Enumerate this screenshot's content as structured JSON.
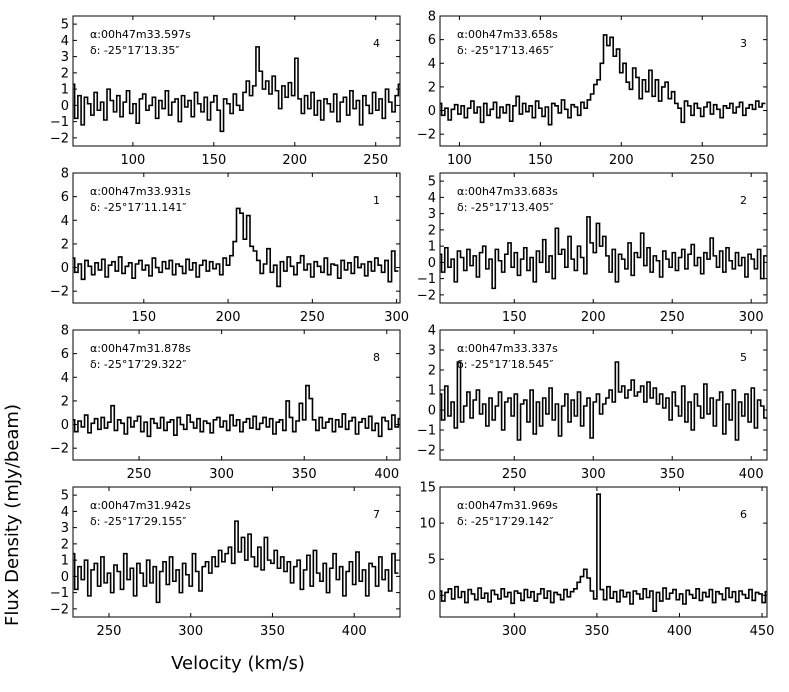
{
  "figure": {
    "ylabel": "Flux Density (mJy/beam)",
    "xlabel": "Velocity (km/s)"
  },
  "chart_data": [
    {
      "type": "line",
      "label": "4",
      "ra": "α:00h47m33.597s",
      "dec": "δ: -25°17′13.35″",
      "xlim": [
        63,
        265
      ],
      "ylim": [
        -2.5,
        5.5
      ],
      "xticks": [
        100,
        150,
        200,
        250
      ],
      "yticks": [
        -2,
        -1,
        0,
        1,
        2,
        3,
        4,
        5
      ],
      "x_start": 63,
      "x_step": 2,
      "values": [
        1.3,
        -0.8,
        0.6,
        -1.2,
        0.5,
        0.1,
        -0.6,
        0.8,
        -0.3,
        0.2,
        -0.9,
        1.0,
        0.3,
        -0.4,
        0.6,
        -0.7,
        0.2,
        0.9,
        -0.5,
        0.1,
        -1.1,
        0.4,
        0.7,
        -0.3,
        0.0,
        0.5,
        -0.8,
        0.3,
        -0.2,
        0.9,
        -0.6,
        0.2,
        0.4,
        -1.0,
        0.6,
        -0.1,
        0.3,
        -0.7,
        0.8,
        0.1,
        -0.4,
        0.5,
        -0.9,
        0.2,
        0.6,
        -0.3,
        -1.6,
        0.4,
        0.1,
        -0.5,
        0.7,
        0.0,
        -0.3,
        0.8,
        1.5,
        0.6,
        1.2,
        3.6,
        2.1,
        1.0,
        1.5,
        0.7,
        1.8,
        0.9,
        -0.2,
        1.2,
        0.5,
        1.4,
        0.6,
        2.9,
        0.4,
        -0.5,
        0.6,
        -0.2,
        0.8,
        -0.6,
        0.3,
        -0.9,
        0.4,
        0.1,
        -0.4,
        0.7,
        -1.0,
        0.2,
        0.5,
        -0.6,
        0.9,
        -0.2,
        0.3,
        -1.2,
        0.6,
        0.0,
        -0.5,
        0.8,
        -0.3,
        0.4,
        -0.8,
        1.0,
        0.2,
        -0.4,
        0.6,
        1.3
      ]
    },
    {
      "type": "line",
      "label": "3",
      "ra": "α:00h47m33.658s",
      "dec": "δ: -25°17′13.465″",
      "xlim": [
        88,
        290
      ],
      "ylim": [
        -3,
        8
      ],
      "xticks": [
        100,
        150,
        200,
        250
      ],
      "yticks": [
        -2,
        0,
        2,
        4,
        6,
        8
      ],
      "x_start": 88,
      "x_step": 2,
      "values": [
        0.6,
        -0.4,
        0.2,
        -0.8,
        0.1,
        0.5,
        -0.3,
        0.4,
        -0.6,
        0.2,
        0.8,
        -0.2,
        0.3,
        -1.0,
        0.6,
        -0.4,
        0.1,
        0.7,
        -0.6,
        0.3,
        -0.2,
        0.5,
        -0.9,
        0.4,
        1.2,
        -0.3,
        0.6,
        -0.1,
        0.4,
        -0.6,
        0.8,
        0.2,
        -0.5,
        0.3,
        -1.2,
        0.6,
        0.4,
        -0.2,
        0.9,
        0.1,
        -0.6,
        0.5,
        0.3,
        -0.4,
        0.7,
        0.2,
        0.9,
        1.4,
        2.2,
        2.6,
        4.0,
        6.4,
        5.5,
        6.2,
        4.6,
        5.2,
        3.2,
        4.0,
        2.4,
        1.8,
        3.6,
        2.8,
        1.0,
        2.6,
        1.6,
        3.4,
        1.2,
        2.6,
        0.8,
        2.0,
        2.4,
        1.0,
        1.6,
        0.6,
        0.2,
        -1.0,
        0.8,
        0.4,
        -0.4,
        0.6,
        0.2,
        -0.5,
        0.3,
        0.7,
        -0.3,
        0.5,
        0.1,
        -0.6,
        0.4,
        0.2,
        0.6,
        -0.2,
        0.3,
        0.7,
        -0.4,
        0.2,
        0.5,
        0.1,
        0.8,
        0.3,
        0.6
      ]
    },
    {
      "type": "line",
      "label": "1",
      "ra": "α:00h47m33.931s",
      "dec": "δ: -25°17′11.141″",
      "xlim": [
        108,
        302
      ],
      "ylim": [
        -3,
        8
      ],
      "xticks": [
        150,
        200,
        250,
        300
      ],
      "yticks": [
        -2,
        0,
        2,
        4,
        6,
        8
      ],
      "x_start": 108,
      "x_step": 2,
      "values": [
        0.8,
        -0.4,
        0.3,
        -1.0,
        0.6,
        0.1,
        -0.6,
        0.4,
        -0.2,
        0.7,
        -0.8,
        0.2,
        0.5,
        -0.3,
        0.9,
        -0.5,
        0.1,
        0.4,
        -0.9,
        0.3,
        0.6,
        -0.2,
        0.2,
        -0.7,
        0.8,
        0.0,
        -0.4,
        0.5,
        -0.1,
        0.6,
        -0.6,
        0.3,
        0.1,
        -0.5,
        0.7,
        -0.2,
        0.4,
        -0.8,
        0.2,
        0.6,
        -0.3,
        0.5,
        -0.1,
        0.3,
        -0.6,
        0.8,
        0.2,
        1.0,
        2.2,
        5.0,
        4.6,
        2.4,
        4.4,
        1.8,
        1.4,
        0.6,
        -0.5,
        0.3,
        1.6,
        -0.4,
        0.2,
        -1.6,
        0.5,
        -0.3,
        0.9,
        0.1,
        -0.6,
        0.4,
        1.0,
        -0.2,
        0.3,
        -0.8,
        0.5,
        0.1,
        -0.4,
        0.8,
        -0.6,
        0.3,
        0.2,
        -0.9,
        0.6,
        -0.2,
        0.4,
        -0.5,
        0.9,
        0.0,
        0.3,
        -0.7,
        0.5,
        -0.3,
        0.8,
        0.2,
        -0.4,
        0.6,
        -1.2,
        1.4,
        -0.3
      ]
    },
    {
      "type": "line",
      "label": "2",
      "ra": "α:00h47m33.683s",
      "dec": "δ: -25°17′13.405″",
      "xlim": [
        103,
        310
      ],
      "ylim": [
        -2.5,
        5.5
      ],
      "xticks": [
        150,
        200,
        250,
        300
      ],
      "yticks": [
        -2,
        -1,
        0,
        1,
        2,
        3,
        4,
        5
      ],
      "x_start": 103,
      "x_step": 2,
      "values": [
        0.5,
        -0.6,
        0.9,
        -0.3,
        0.2,
        -1.2,
        0.7,
        0.3,
        -0.5,
        0.8,
        -0.2,
        0.4,
        -0.9,
        0.6,
        1.0,
        -0.4,
        0.2,
        -1.6,
        0.8,
        0.1,
        -0.6,
        0.5,
        1.2,
        -0.3,
        0.6,
        -0.8,
        0.2,
        0.9,
        -0.5,
        0.3,
        -1.2,
        0.7,
        0.0,
        1.4,
        -0.6,
        0.4,
        -1.0,
        2.1,
        0.5,
        0.8,
        -0.3,
        1.6,
        0.2,
        -0.5,
        1.0,
        0.3,
        -0.7,
        2.8,
        1.2,
        0.6,
        2.4,
        1.0,
        1.6,
        0.4,
        -0.6,
        0.8,
        -1.2,
        0.5,
        0.2,
        -0.4,
        1.2,
        -0.8,
        0.6,
        0.3,
        1.8,
        -0.2,
        0.9,
        -0.6,
        0.4,
        0.1,
        -0.9,
        0.7,
        0.2,
        -0.3,
        0.6,
        -0.5,
        0.3,
        0.8,
        -0.4,
        0.5,
        1.1,
        -0.2,
        0.3,
        -0.7,
        0.6,
        0.2,
        1.5,
        0.4,
        -0.3,
        0.7,
        -0.6,
        0.9,
        0.1,
        -0.4,
        0.6,
        -0.2,
        0.3,
        -0.9,
        0.5,
        0.2,
        -0.4,
        0.8,
        -1.0,
        0.4
      ]
    },
    {
      "type": "line",
      "label": "8",
      "ra": "α:00h47m31.878s",
      "dec": "δ: -25°17′29.322″",
      "xlim": [
        210,
        408
      ],
      "ylim": [
        -3,
        8
      ],
      "xticks": [
        250,
        300,
        350,
        400
      ],
      "yticks": [
        -2,
        0,
        2,
        4,
        6,
        8
      ],
      "x_start": 210,
      "x_step": 2,
      "values": [
        0.4,
        -0.6,
        0.3,
        -0.2,
        0.8,
        -0.7,
        0.1,
        0.5,
        -0.4,
        0.6,
        -0.3,
        0.2,
        1.6,
        -0.5,
        0.4,
        0.1,
        -0.8,
        0.6,
        -0.2,
        0.3,
        0.7,
        -0.6,
        0.2,
        -1.0,
        0.5,
        0.1,
        -0.3,
        0.6,
        -0.5,
        0.2,
        0.4,
        -0.9,
        0.6,
        0.0,
        -0.4,
        0.8,
        0.2,
        -0.3,
        0.5,
        -0.6,
        0.3,
        0.1,
        -0.7,
        0.4,
        0.6,
        -0.2,
        0.3,
        -0.5,
        0.8,
        -0.1,
        0.4,
        -0.6,
        0.2,
        0.5,
        -0.3,
        0.7,
        -0.4,
        0.1,
        0.6,
        -0.2,
        0.5,
        -0.8,
        0.2,
        0.4,
        -0.5,
        2.0,
        0.6,
        -0.6,
        0.3,
        1.8,
        0.4,
        3.3,
        2.2,
        0.4,
        -0.5,
        0.6,
        -0.3,
        0.2,
        0.5,
        -0.6,
        0.4,
        -0.2,
        0.9,
        -0.4,
        0.3,
        0.6,
        -0.8,
        0.2,
        0.5,
        -0.3,
        0.7,
        -0.5,
        0.1,
        -1.0,
        0.6,
        0.3,
        -0.4,
        0.8,
        -0.2,
        0.5
      ]
    },
    {
      "type": "line",
      "label": "5",
      "ra": "α:00h47m33.337s",
      "dec": "δ: -25°17′18.545″",
      "xlim": [
        203,
        410
      ],
      "ylim": [
        -2.5,
        4
      ],
      "xticks": [
        250,
        300,
        350,
        400
      ],
      "yticks": [
        -2,
        -1,
        0,
        1,
        2,
        3,
        4
      ],
      "x_start": 203,
      "x_step": 2,
      "values": [
        0.8,
        -0.5,
        1.2,
        -0.3,
        0.4,
        -0.9,
        2.4,
        -0.6,
        0.2,
        0.9,
        -0.4,
        0.5,
        1.0,
        -0.2,
        0.3,
        -0.8,
        0.6,
        -0.5,
        0.2,
        0.9,
        -1.0,
        0.4,
        0.6,
        -0.3,
        0.8,
        -1.5,
        0.3,
        0.5,
        -0.6,
        1.0,
        -1.2,
        0.4,
        -0.8,
        0.6,
        -0.2,
        1.1,
        -0.5,
        0.3,
        -1.3,
        0.2,
        0.8,
        -0.6,
        0.5,
        -0.3,
        0.9,
        -0.8,
        0.2,
        0.6,
        -1.4,
        0.4,
        0.8,
        -0.2,
        0.3,
        0.6,
        1.0,
        0.4,
        2.4,
        0.9,
        1.2,
        0.6,
        1.0,
        1.5,
        0.7,
        0.9,
        1.2,
        0.4,
        1.4,
        0.6,
        1.1,
        0.3,
        0.8,
        0.1,
        0.6,
        -0.5,
        0.9,
        0.2,
        -0.3,
        1.2,
        -0.6,
        0.4,
        -1.0,
        0.8,
        0.2,
        -0.4,
        1.3,
        -0.2,
        0.6,
        -0.8,
        0.5,
        0.9,
        -1.2,
        0.3,
        -0.5,
        1.0,
        -1.5,
        0.4,
        -0.3,
        0.8,
        -0.6,
        1.1,
        -0.9,
        0.5,
        0.2,
        -0.4
      ]
    },
    {
      "type": "line",
      "label": "7",
      "ra": "α:00h47m31.942s",
      "dec": "δ: -25°17′29.155″",
      "xlim": [
        228,
        428
      ],
      "ylim": [
        -2.5,
        5.5
      ],
      "xticks": [
        250,
        300,
        350,
        400
      ],
      "yticks": [
        -2,
        -1,
        0,
        1,
        2,
        3,
        4,
        5
      ],
      "x_start": 228,
      "x_step": 2,
      "values": [
        1.4,
        -0.8,
        0.6,
        -0.2,
        1.0,
        -1.2,
        0.4,
        0.8,
        -0.6,
        1.2,
        -0.4,
        0.2,
        -1.0,
        0.7,
        0.3,
        -0.8,
        1.4,
        -0.2,
        0.5,
        -1.2,
        0.8,
        0.2,
        -0.6,
        1.0,
        -0.4,
        0.6,
        -1.6,
        0.3,
        0.9,
        -0.5,
        1.2,
        -0.3,
        0.4,
        -1.0,
        0.8,
        0.1,
        -0.6,
        1.4,
        0.3,
        -0.9,
        0.6,
        0.9,
        0.2,
        1.2,
        0.6,
        1.6,
        0.9,
        1.4,
        1.8,
        0.8,
        3.4,
        1.5,
        2.4,
        1.0,
        2.6,
        1.2,
        0.6,
        1.8,
        0.4,
        2.4,
        1.0,
        0.8,
        1.6,
        0.5,
        1.2,
        0.3,
        0.9,
        -0.4,
        0.6,
        1.0,
        -0.8,
        0.4,
        1.3,
        -0.6,
        1.6,
        0.2,
        -0.3,
        0.8,
        -1.0,
        0.5,
        1.4,
        -0.2,
        0.6,
        -1.2,
        0.3,
        0.9,
        -0.5,
        1.5,
        -0.3,
        0.4,
        -1.2,
        0.8,
        0.6,
        -0.6,
        1.2,
        -0.2,
        0.4,
        -0.9,
        1.4,
        0.2
      ]
    },
    {
      "type": "line",
      "label": "6",
      "ra": "α:00h47m31.969s",
      "dec": "δ: -25°17′29.142″",
      "xlim": [
        255,
        453
      ],
      "ylim": [
        -3,
        15
      ],
      "xticks": [
        300,
        350,
        400,
        450
      ],
      "yticks": [
        0,
        5,
        10,
        15
      ],
      "x_start": 255,
      "x_step": 2,
      "values": [
        0.6,
        -0.8,
        0.4,
        0.9,
        -0.5,
        1.2,
        -0.3,
        0.5,
        -1.0,
        0.8,
        0.2,
        -0.6,
        1.0,
        -0.4,
        0.3,
        -0.9,
        0.7,
        0.1,
        -0.5,
        0.9,
        -0.2,
        0.4,
        -1.1,
        0.6,
        0.3,
        -0.7,
        0.8,
        -0.3,
        0.5,
        -0.8,
        0.2,
        0.9,
        -0.4,
        0.6,
        -1.0,
        0.4,
        0.1,
        -0.6,
        0.8,
        -0.2,
        0.5,
        0.9,
        1.8,
        2.6,
        3.6,
        2.4,
        0.6,
        -0.5,
        14.0,
        0.8,
        -0.6,
        1.2,
        -0.4,
        0.5,
        -0.9,
        0.7,
        -0.2,
        0.4,
        -1.2,
        0.6,
        0.2,
        -0.5,
        0.9,
        -0.3,
        0.6,
        -2.2,
        0.4,
        -0.8,
        1.0,
        -0.5,
        0.3,
        0.8,
        -0.6,
        0.2,
        -1.2,
        0.7,
        0.1,
        -0.4,
        0.9,
        -0.7,
        0.4,
        -0.2,
        0.8,
        -1.0,
        0.5,
        0.2,
        -0.6,
        1.0,
        -0.3,
        0.5,
        -0.9,
        0.6,
        0.1,
        -0.4,
        0.8,
        -0.7,
        0.4,
        0.2,
        -1.0,
        0.5
      ]
    }
  ]
}
